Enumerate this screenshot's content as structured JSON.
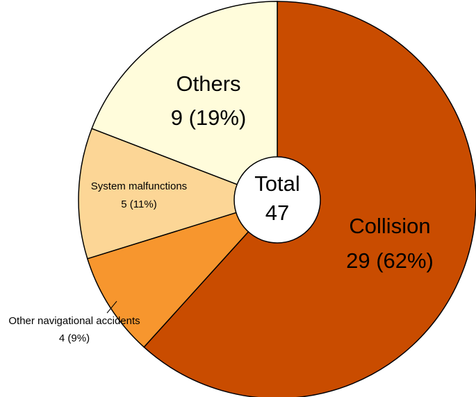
{
  "chart_data": {
    "type": "pie",
    "total_label": "Total",
    "total_value": "47",
    "slices": [
      {
        "name": "Collision",
        "value": 29,
        "value_text": "29 (62%)",
        "color": "#C94C00"
      },
      {
        "name": "Other navigational accidents",
        "value": 4,
        "value_text": "4 (9%)",
        "color": "#F7962E"
      },
      {
        "name": "System malfunctions",
        "value": 5,
        "value_text": "5 (11%)",
        "color": "#FCD696"
      },
      {
        "name": "Others",
        "value": 9,
        "value_text": "9 (19%)",
        "color": "#FFFCDB"
      }
    ]
  }
}
